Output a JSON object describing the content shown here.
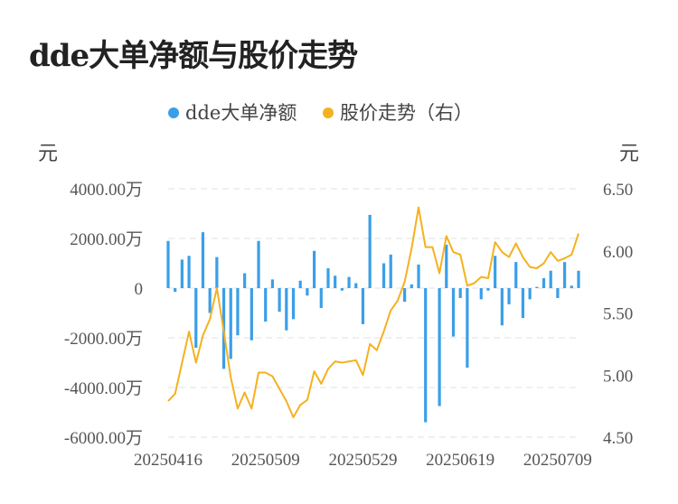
{
  "title": "dde大单净额与股价走势",
  "chart_data": {
    "type": "bar+line",
    "title": "dde大单净额与股价走势",
    "legend": {
      "placement": "top-center"
    },
    "grid": true,
    "left_axis": {
      "unit": "元",
      "ylim": [
        -6000,
        4000
      ],
      "ticks": [
        4000,
        2000,
        0,
        -2000,
        -4000,
        -6000
      ],
      "tick_labels": [
        "4000.00万",
        "2000.00万",
        "0",
        "-2000.00万",
        "-4000.00万",
        "-6000.00万"
      ]
    },
    "right_axis": {
      "unit": "元",
      "ylim": [
        4.5,
        6.5
      ],
      "ticks": [
        6.5,
        6.0,
        5.5,
        5.0,
        4.5
      ],
      "tick_labels": [
        "6.50",
        "6.00",
        "5.50",
        "5.00",
        "4.50"
      ]
    },
    "x_tick_labels": [
      "20250416",
      "20250509",
      "20250529",
      "20250619",
      "20250709"
    ],
    "x_tick_index": [
      0,
      14,
      28,
      42,
      56
    ],
    "series": [
      {
        "name": "dde大单净额",
        "type": "bar",
        "axis": "left",
        "color": "#3a9fe8",
        "values": [
          1900,
          -150,
          1150,
          1300,
          -2400,
          2250,
          -1000,
          1250,
          -3250,
          -2850,
          -1900,
          600,
          -2100,
          1900,
          -1350,
          350,
          -950,
          -1700,
          -1250,
          300,
          -300,
          1500,
          -800,
          800,
          500,
          -100,
          450,
          200,
          -1450,
          2950,
          0,
          1000,
          1350,
          0,
          -550,
          150,
          950,
          -5400,
          0,
          -4750,
          1750,
          -1950,
          -400,
          -3200,
          0,
          -450,
          -100,
          1300,
          -1500,
          -650,
          1050,
          -1200,
          -450,
          50,
          400,
          700,
          -400,
          1050,
          100,
          700
        ]
      },
      {
        "name": "股价走势（右）",
        "type": "line",
        "axis": "right",
        "color": "#f5b11f",
        "values": [
          4.79,
          4.85,
          5.1,
          5.35,
          5.1,
          5.32,
          5.45,
          5.7,
          5.35,
          4.98,
          4.73,
          4.86,
          4.73,
          5.02,
          5.02,
          4.99,
          4.89,
          4.79,
          4.66,
          4.76,
          4.8,
          5.03,
          4.93,
          5.05,
          5.11,
          5.1,
          5.11,
          5.12,
          5.0,
          5.25,
          5.2,
          5.35,
          5.52,
          5.6,
          5.75,
          6.02,
          6.35,
          6.03,
          6.03,
          5.82,
          6.12,
          5.99,
          5.97,
          5.72,
          5.74,
          5.79,
          5.78,
          6.07,
          5.99,
          5.95,
          6.06,
          5.95,
          5.87,
          5.86,
          5.9,
          5.99,
          5.92,
          5.94,
          5.97,
          6.14
        ]
      }
    ]
  }
}
